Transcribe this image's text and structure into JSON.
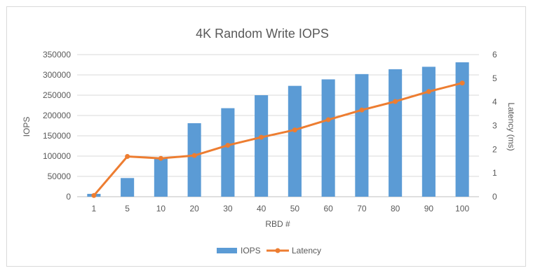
{
  "chart_data": {
    "type": "bar",
    "title": "4K Random Write IOPS",
    "xlabel": "RBD #",
    "ylabel": "IOPS",
    "y2label": "Latency (ms)",
    "categories": [
      "1",
      "5",
      "10",
      "20",
      "30",
      "40",
      "50",
      "60",
      "70",
      "80",
      "90",
      "100"
    ],
    "ylim": [
      0,
      350000
    ],
    "yticks": [
      "0",
      "50000",
      "100000",
      "150000",
      "200000",
      "250000",
      "300000",
      "350000"
    ],
    "y2lim": [
      0,
      6
    ],
    "y2ticks": [
      "0",
      "1",
      "2",
      "3",
      "4",
      "5",
      "6"
    ],
    "grid": true,
    "legend_position": "bottom",
    "series": [
      {
        "name": "IOPS",
        "type": "bar",
        "axis": "left",
        "color": "#5b9bd5",
        "values": [
          7000,
          46000,
          95000,
          181000,
          218000,
          250000,
          273000,
          289000,
          302000,
          314000,
          320000,
          331000
        ]
      },
      {
        "name": "Latency",
        "type": "line",
        "axis": "right",
        "color": "#ed7d31",
        "values": [
          0.05,
          1.7,
          1.62,
          1.74,
          2.17,
          2.51,
          2.82,
          3.25,
          3.66,
          4.02,
          4.44,
          4.8
        ]
      }
    ]
  }
}
